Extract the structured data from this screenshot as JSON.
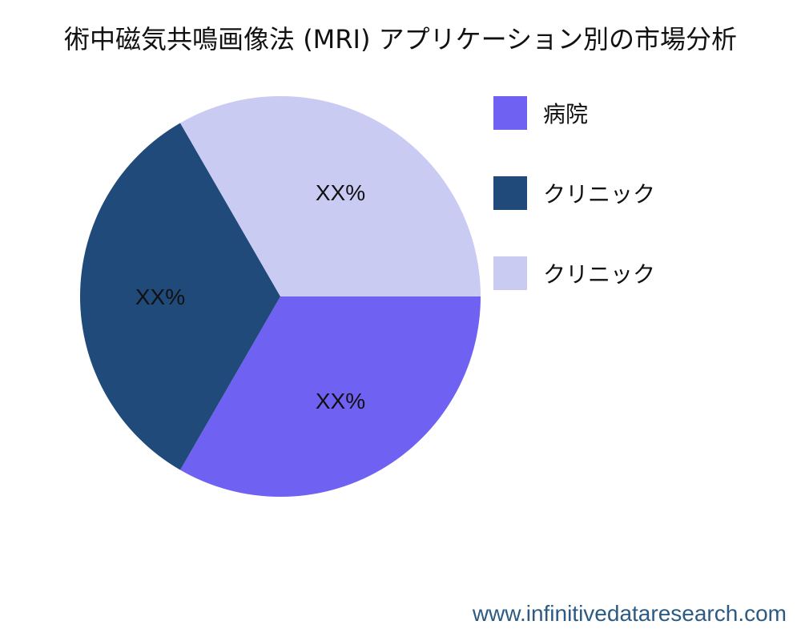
{
  "chart_data": {
    "type": "pie",
    "title": "術中磁気共鳴画像法 (MRI) アプリケーション別の市場分析",
    "slices": [
      {
        "label": "病院",
        "value": 33.3,
        "data_label": "XX%",
        "color": "#6f61f2"
      },
      {
        "label": "クリニック",
        "value": 33.3,
        "data_label": "XX%",
        "color": "#1f4a7a"
      },
      {
        "label": "クリニック",
        "value": 33.3,
        "data_label": "XX%",
        "color": "#c9cbf2"
      }
    ],
    "legend_placement": "right",
    "start_direction": "3 o'clock, clockwise"
  },
  "watermark": "www.infinitivedataresearch.com"
}
